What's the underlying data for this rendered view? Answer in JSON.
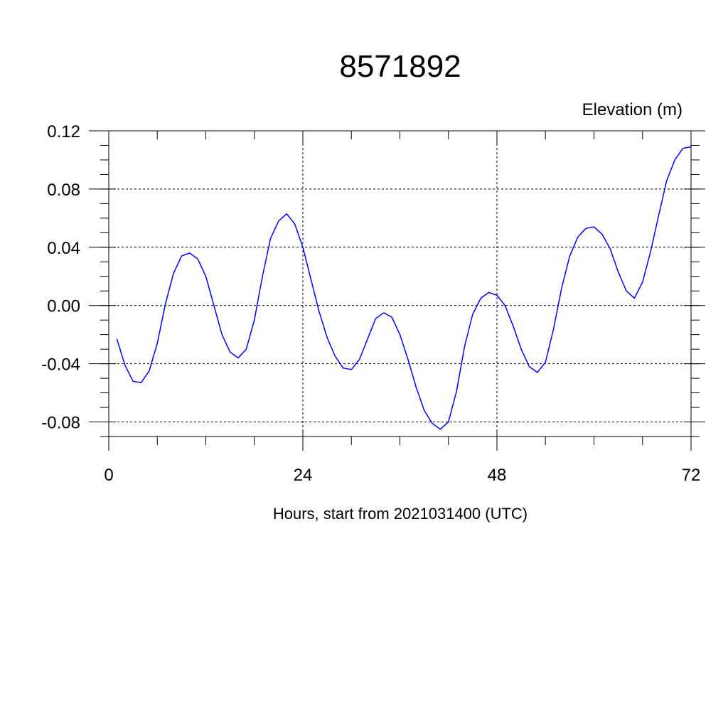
{
  "chart_data": {
    "type": "line",
    "title": "8571892",
    "ylabel": "Elevation (m)",
    "xlabel": "Hours, start from 2021031400 (UTC)",
    "xlim": [
      0,
      72
    ],
    "ylim": [
      -0.09,
      0.12
    ],
    "xticks": [
      0,
      24,
      48,
      72
    ],
    "xtick_labels": [
      "0",
      "24",
      "48",
      "72"
    ],
    "xminor_step": 6,
    "yticks": [
      0.12,
      0.08,
      0.04,
      0.0,
      -0.04,
      -0.08
    ],
    "ytick_labels": [
      "0.12",
      "0.08",
      "0.04",
      "0.00",
      "-0.04",
      "-0.08"
    ],
    "yminor_step": 0.01,
    "grid": true,
    "series": [
      {
        "color": "#0000ff",
        "x": [
          1,
          2,
          3,
          4,
          5,
          6,
          7,
          8,
          9,
          10,
          11,
          12,
          13,
          14,
          15,
          16,
          17,
          18,
          19,
          20,
          21,
          22,
          23,
          24,
          25,
          26,
          27,
          28,
          29,
          30,
          31,
          32,
          33,
          34,
          35,
          36,
          37,
          38,
          39,
          40,
          41,
          42,
          43,
          44,
          45,
          46,
          47,
          48,
          49,
          50,
          51,
          52,
          53,
          54,
          55,
          56,
          57,
          58,
          59,
          60,
          61,
          62,
          63,
          64,
          65,
          66,
          67,
          68,
          69,
          70,
          71,
          72
        ],
        "values": [
          -0.023,
          -0.041,
          -0.052,
          -0.053,
          -0.045,
          -0.026,
          0.001,
          0.022,
          0.034,
          0.036,
          0.032,
          0.02,
          0.0,
          -0.02,
          -0.032,
          -0.036,
          -0.03,
          -0.01,
          0.02,
          0.046,
          0.058,
          0.063,
          0.056,
          0.04,
          0.018,
          -0.004,
          -0.022,
          -0.035,
          -0.043,
          -0.044,
          -0.037,
          -0.023,
          -0.009,
          -0.005,
          -0.008,
          -0.02,
          -0.037,
          -0.056,
          -0.072,
          -0.081,
          -0.085,
          -0.08,
          -0.059,
          -0.028,
          -0.006,
          0.005,
          0.009,
          0.007,
          0.0,
          -0.014,
          -0.03,
          -0.042,
          -0.046,
          -0.039,
          -0.016,
          0.012,
          0.034,
          0.047,
          0.053,
          0.054,
          0.049,
          0.039,
          0.023,
          0.01,
          0.005,
          0.016,
          0.037,
          0.062,
          0.086,
          0.1,
          0.108,
          0.109
        ]
      }
    ]
  }
}
